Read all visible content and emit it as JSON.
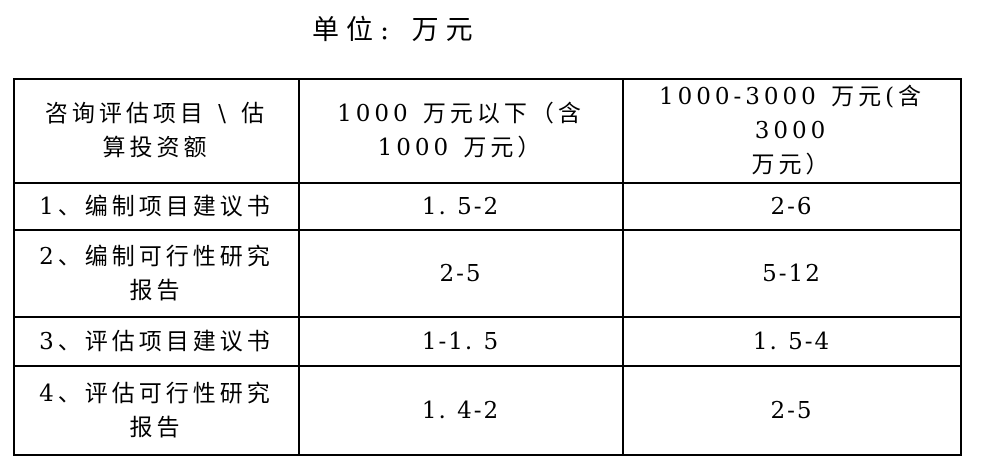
{
  "page": {
    "unit_label": "单位: 万元"
  },
  "colors": {
    "text": "#000000",
    "border": "#000000",
    "background": "#ffffff"
  },
  "table": {
    "col_headers": [
      "咨询评估项目  \\  估\n算投资额",
      "1000 万元以下（含\n1000 万元）",
      "1000-3000 万元(含 3000\n万元）"
    ],
    "rows": [
      {
        "item": "1、编制项目建议书",
        "range_under_1000": "1. 5-2",
        "range_1000_3000": "2-6"
      },
      {
        "item": "2、编制可行性研究\n报告",
        "range_under_1000": "2-5",
        "range_1000_3000": "5-12"
      },
      {
        "item": "3、评估项目建议书",
        "range_under_1000": "1-1. 5",
        "range_1000_3000": "1. 5-4"
      },
      {
        "item": "4、评估可行性研究\n报告",
        "range_under_1000": "1. 4-2",
        "range_1000_3000": "2-5"
      }
    ]
  }
}
